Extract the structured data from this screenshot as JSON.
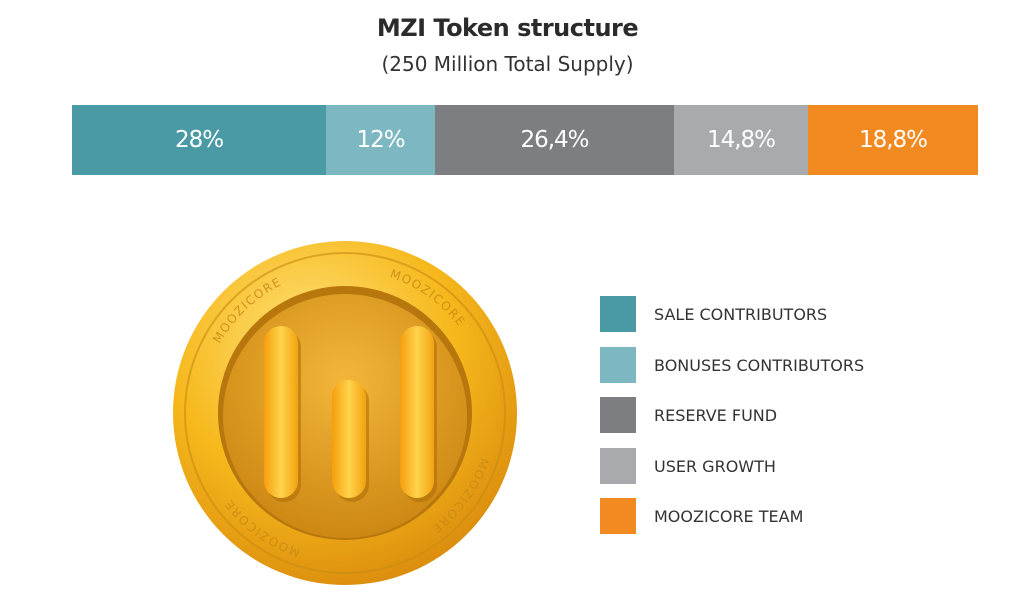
{
  "chart_data": {
    "type": "bar",
    "subtype": "stacked-100-horizontal",
    "title": "MZI Token structure",
    "subtitle": "(250 Million Total Supply)",
    "categories": [
      "SALE CONTRIBUTORS",
      "BONUSES CONTRIBUTORS",
      "RESERVE FUND",
      "USER GROWTH",
      "MOOZICORE TEAM"
    ],
    "values": [
      28,
      12,
      26.4,
      14.8,
      18.8
    ],
    "data_labels": [
      "28%",
      "12%",
      "26,4%",
      "14,8%",
      "18,8%"
    ],
    "colors": [
      "#4a9aa6",
      "#7db8c2",
      "#7d7e82",
      "#a9aaae",
      "#f28a22"
    ],
    "legend_placement": "right",
    "grid": false
  },
  "logo": {
    "ring_text": "MOOZICORE",
    "colors": {
      "outer": "#f4b41a",
      "inner": "#e2a21a",
      "bars": "#fbb726"
    }
  }
}
